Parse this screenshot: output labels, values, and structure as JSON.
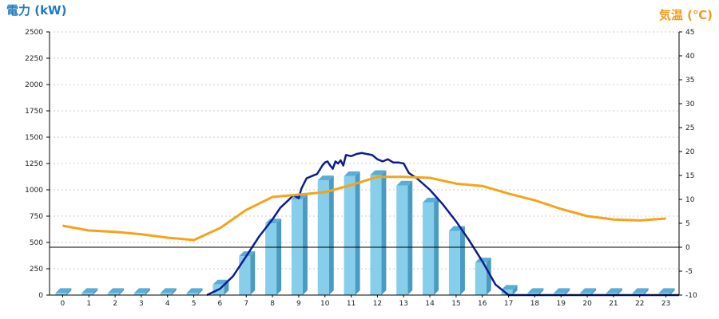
{
  "chart_data": {
    "type": "bar",
    "title": "",
    "xlabel": "",
    "ylabel_left": "電力 (kW)",
    "ylabel_right": "気温 (℃)",
    "categories": [
      "0",
      "1",
      "2",
      "3",
      "4",
      "5",
      "6",
      "7",
      "8",
      "9",
      "10",
      "11",
      "12",
      "13",
      "14",
      "15",
      "16",
      "17",
      "18",
      "19",
      "20",
      "21",
      "22",
      "23"
    ],
    "y_left": {
      "min": 0,
      "max": 2500,
      "ticks": [
        "0",
        "250",
        "500",
        "750",
        "1000",
        "1250",
        "1500",
        "1750",
        "2000",
        "2250",
        "2500"
      ]
    },
    "y_right": {
      "min": -10,
      "max": 45,
      "ticks": [
        "-10",
        "-5",
        "0",
        "5",
        "10",
        "15",
        "20",
        "25",
        "30",
        "35",
        "40",
        "45"
      ]
    },
    "grid": true,
    "colors": {
      "bar_front": "#87ceeb",
      "bar_side": "#4a9bc2",
      "bar_top": "#5aaed6",
      "power_line": "#0b1f8f",
      "temp_line": "#f5a31a",
      "axis": "#000000",
      "grid": "#cccccc",
      "left_title": "#1f7ac0",
      "right_title": "#f29b1c"
    },
    "series": [
      {
        "kind": "bar",
        "axis": "left",
        "values": [
          20,
          20,
          20,
          20,
          20,
          20,
          100,
          370,
          680,
          910,
          1090,
          1130,
          1140,
          1040,
          880,
          610,
          310,
          50,
          20,
          20,
          20,
          20,
          20,
          20
        ]
      },
      {
        "kind": "line",
        "axis": "left",
        "x": [
          5.5,
          6.0,
          6.5,
          7.0,
          7.5,
          8.0,
          8.3,
          8.6,
          8.8,
          9.0,
          9.1,
          9.3,
          9.5,
          9.7,
          9.9,
          10.0,
          10.1,
          10.2,
          10.3,
          10.4,
          10.5,
          10.6,
          10.7,
          10.8,
          11.0,
          11.2,
          11.4,
          11.6,
          11.8,
          12.0,
          12.2,
          12.4,
          12.6,
          12.8,
          13.0,
          13.2,
          13.5,
          14.0,
          14.5,
          15.0,
          15.5,
          16.0,
          16.5,
          17.0,
          17.5,
          18.0,
          19.0,
          20.0,
          21.0,
          22.0,
          23.0,
          23.5
        ],
        "values": [
          0,
          60,
          180,
          370,
          560,
          720,
          830,
          900,
          950,
          920,
          1010,
          1110,
          1130,
          1150,
          1230,
          1260,
          1270,
          1230,
          1200,
          1270,
          1250,
          1280,
          1230,
          1330,
          1320,
          1340,
          1350,
          1340,
          1330,
          1290,
          1270,
          1290,
          1260,
          1260,
          1250,
          1160,
          1110,
          1000,
          860,
          700,
          520,
          320,
          100,
          0,
          0,
          0,
          0,
          0,
          0,
          0,
          0,
          0
        ]
      },
      {
        "kind": "line",
        "axis": "right",
        "x": [
          0,
          1,
          2,
          3,
          4,
          5,
          6,
          7,
          8,
          9,
          10,
          11,
          12,
          13,
          14,
          15,
          16,
          17,
          18,
          19,
          20,
          21,
          22,
          23
        ],
        "values": [
          4.5,
          3.5,
          3.2,
          2.7,
          2.0,
          1.5,
          4.0,
          7.8,
          10.5,
          11.0,
          11.5,
          13.0,
          14.7,
          14.7,
          14.5,
          13.3,
          12.8,
          11.2,
          9.8,
          8.0,
          6.5,
          5.8,
          5.6,
          6.0
        ]
      }
    ]
  }
}
